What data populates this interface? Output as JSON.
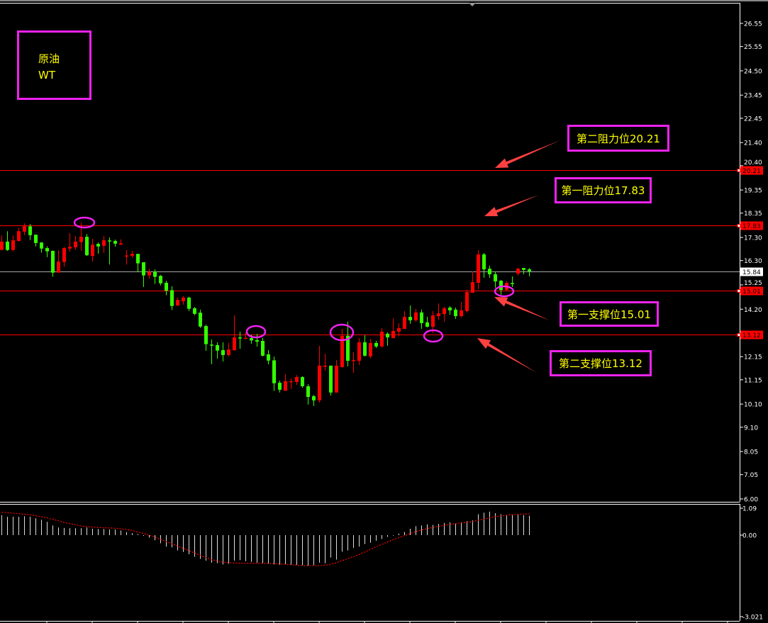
{
  "instrument_box": {
    "line1": "原油",
    "line2": "WT"
  },
  "colors": {
    "background": "#000000",
    "bull": "#ff0000",
    "bear": "#33ff00",
    "level_line": "#ff0000",
    "price_line": "#aaaaaa",
    "annotation_border": "#ee22ee",
    "annotation_text": "#ffff00",
    "arrow": "#ff4040",
    "histogram": "#dddddd",
    "signal": "#ff0000"
  },
  "annotations": [
    {
      "label": "第二阻力位20.21",
      "level": 20.21,
      "type": "resistance"
    },
    {
      "label": "第一阻力位17.83",
      "level": 17.83,
      "type": "resistance"
    },
    {
      "label": "第一支撑位15.01",
      "level": 15.01,
      "type": "support"
    },
    {
      "label": "第二支撑位13.12",
      "level": 13.12,
      "type": "support"
    }
  ],
  "chart_data": [
    {
      "type": "candlestick",
      "ylim": [
        6.0,
        26.55
      ],
      "y_ticks": [
        "26.55",
        "25.55",
        "24.50",
        "23.45",
        "22.45",
        "21.40",
        "20.40",
        "19.35",
        "18.35",
        "17.30",
        "16.30",
        "15.25",
        "14.20",
        "12.15",
        "11.15",
        "10.10",
        "9.10",
        "8.05",
        "7.05",
        "6.00"
      ],
      "level_lines": [
        20.21,
        17.83,
        15.01,
        13.12
      ],
      "level_labels": [
        "20.21",
        "17.83",
        "15.01",
        "13.12"
      ],
      "current_price": 15.84,
      "current_price_label": "15.84",
      "marked_candles": [
        14,
        44,
        59,
        75,
        89
      ],
      "ohlc": [
        [
          16.76,
          17.39,
          16.76,
          17.12
        ],
        [
          17.12,
          17.57,
          16.72,
          16.76
        ],
        [
          16.76,
          17.39,
          16.7,
          17.18
        ],
        [
          17.15,
          17.72,
          17.13,
          17.57
        ],
        [
          17.55,
          17.91,
          17.4,
          17.8
        ],
        [
          17.78,
          17.88,
          17.19,
          17.4
        ],
        [
          17.42,
          17.42,
          16.91,
          17.06
        ],
        [
          17.08,
          17.1,
          16.64,
          16.82
        ],
        [
          16.84,
          16.92,
          16.45,
          16.7
        ],
        [
          16.72,
          16.74,
          15.6,
          15.78
        ],
        [
          15.78,
          16.74,
          15.78,
          16.26
        ],
        [
          16.24,
          16.89,
          16.04,
          16.84
        ],
        [
          16.82,
          17.48,
          16.69,
          16.9
        ],
        [
          16.87,
          17.36,
          16.78,
          17.12
        ],
        [
          17.1,
          17.94,
          16.73,
          17.33
        ],
        [
          17.33,
          17.45,
          16.5,
          16.53
        ],
        [
          16.5,
          17.24,
          16.26,
          16.99
        ],
        [
          17.02,
          17.08,
          16.6,
          16.91
        ],
        [
          16.94,
          17.36,
          16.63,
          17.18
        ],
        [
          17.17,
          17.3,
          16.13,
          17.15
        ],
        [
          17.15,
          17.21,
          16.9,
          17.03
        ],
        [
          17.0,
          17.22,
          16.97,
          17.05
        ],
        [
          16.48,
          16.75,
          16.13,
          16.52
        ],
        [
          16.51,
          16.72,
          16.42,
          16.59
        ],
        [
          16.59,
          16.59,
          15.82,
          16.18
        ],
        [
          16.23,
          16.23,
          15.16,
          15.66
        ],
        [
          15.66,
          15.95,
          15.52,
          15.81
        ],
        [
          15.82,
          15.92,
          15.29,
          15.6
        ],
        [
          15.64,
          15.68,
          15.23,
          15.32
        ],
        [
          15.34,
          15.43,
          14.8,
          15.0
        ],
        [
          15.02,
          15.19,
          14.16,
          14.34
        ],
        [
          14.36,
          14.7,
          14.34,
          14.6
        ],
        [
          14.54,
          14.76,
          14.39,
          14.7
        ],
        [
          14.7,
          14.74,
          14.12,
          14.22
        ],
        [
          14.24,
          14.3,
          13.94,
          14.0
        ],
        [
          14.05,
          14.18,
          13.39,
          13.45
        ],
        [
          13.47,
          13.53,
          12.4,
          12.69
        ],
        [
          12.67,
          12.89,
          11.82,
          12.64
        ],
        [
          12.65,
          12.77,
          12.06,
          12.41
        ],
        [
          12.43,
          12.77,
          11.94,
          12.22
        ],
        [
          12.22,
          12.74,
          12.16,
          12.46
        ],
        [
          12.43,
          13.93,
          12.4,
          12.98
        ],
        [
          12.98,
          13.23,
          12.49,
          12.96
        ],
        [
          12.93,
          13.2,
          12.93,
          12.96
        ],
        [
          12.95,
          13.1,
          12.71,
          12.85
        ],
        [
          12.86,
          13.13,
          12.58,
          12.8
        ],
        [
          12.83,
          12.96,
          12.16,
          12.19
        ],
        [
          12.25,
          12.43,
          11.82,
          11.98
        ],
        [
          11.99,
          12.15,
          10.67,
          11.0
        ],
        [
          11.02,
          11.11,
          10.6,
          10.72
        ],
        [
          10.68,
          11.39,
          10.66,
          11.09
        ],
        [
          11.05,
          11.21,
          10.75,
          11.09
        ],
        [
          11.06,
          11.35,
          10.93,
          11.27
        ],
        [
          11.27,
          11.3,
          10.81,
          10.87
        ],
        [
          10.87,
          10.96,
          10.08,
          10.41
        ],
        [
          10.44,
          10.5,
          10.02,
          10.26
        ],
        [
          10.26,
          12.62,
          10.17,
          11.76
        ],
        [
          11.71,
          12.28,
          11.55,
          11.76
        ],
        [
          11.76,
          11.76,
          10.47,
          10.6
        ],
        [
          10.6,
          12.0,
          10.6,
          11.76
        ],
        [
          11.7,
          13.35,
          11.67,
          13.05
        ],
        [
          13.05,
          13.66,
          11.73,
          11.97
        ],
        [
          11.97,
          12.34,
          11.45,
          12.0
        ],
        [
          11.97,
          12.95,
          11.79,
          12.77
        ],
        [
          12.77,
          13.07,
          12.16,
          12.19
        ],
        [
          12.16,
          12.92,
          12.07,
          12.74
        ],
        [
          12.74,
          12.83,
          12.52,
          12.59
        ],
        [
          12.59,
          13.38,
          12.55,
          13.23
        ],
        [
          13.14,
          13.2,
          12.62,
          12.98
        ],
        [
          12.95,
          13.81,
          12.95,
          13.26
        ],
        [
          13.23,
          13.6,
          13.04,
          13.38
        ],
        [
          13.35,
          14.12,
          13.35,
          13.87
        ],
        [
          13.87,
          14.36,
          13.57,
          13.72
        ],
        [
          13.72,
          14.21,
          13.66,
          14.06
        ],
        [
          14.06,
          14.18,
          13.35,
          13.6
        ],
        [
          13.63,
          13.87,
          13.41,
          13.44
        ],
        [
          13.44,
          14.12,
          13.17,
          13.93
        ],
        [
          13.9,
          14.45,
          13.75,
          14.02
        ],
        [
          13.99,
          14.3,
          13.66,
          14.24
        ],
        [
          14.27,
          14.33,
          13.96,
          14.15
        ],
        [
          14.18,
          14.27,
          13.78,
          13.9
        ],
        [
          13.9,
          14.51,
          13.84,
          14.15
        ],
        [
          14.12,
          15.04,
          14.06,
          14.94
        ],
        [
          14.91,
          15.83,
          14.91,
          15.37
        ],
        [
          15.34,
          16.75,
          15.07,
          16.57
        ],
        [
          16.57,
          16.63,
          15.56,
          15.92
        ],
        [
          15.95,
          16.08,
          15.56,
          15.71
        ],
        [
          15.71,
          15.83,
          15.13,
          15.4
        ],
        [
          15.43,
          15.46,
          14.82,
          15.03
        ],
        [
          15.03,
          15.4,
          15.0,
          15.34
        ],
        [
          15.33,
          15.62,
          15.16,
          15.29
        ],
        [
          15.74,
          15.98,
          15.65,
          15.95
        ],
        [
          15.98,
          15.98,
          15.71,
          15.9
        ],
        [
          15.92,
          15.98,
          15.62,
          15.84
        ]
      ]
    },
    {
      "type": "histogram+line",
      "ylim": [
        -3.021,
        1.09
      ],
      "y_ticks": [
        "1.09",
        "0.00",
        "-3.021"
      ],
      "histogram": [
        0.78,
        0.72,
        0.72,
        0.72,
        0.74,
        0.72,
        0.66,
        0.6,
        0.52,
        0.38,
        0.3,
        0.28,
        0.27,
        0.27,
        0.27,
        0.3,
        0.25,
        0.24,
        0.24,
        0.22,
        0.22,
        0.18,
        0.12,
        0.08,
        0.04,
        -0.03,
        -0.1,
        -0.2,
        -0.32,
        -0.45,
        -0.48,
        -0.6,
        -0.66,
        -0.75,
        -0.85,
        -0.93,
        -1.0,
        -1.08,
        -1.1,
        -1.15,
        -1.12,
        -1.0,
        -0.98,
        -1.02,
        -1.05,
        -1.08,
        -1.1,
        -1.12,
        -1.15,
        -1.16,
        -1.14,
        -1.16,
        -1.17,
        -1.18,
        -1.2,
        -1.18,
        -1.08,
        -1.1,
        -0.88,
        -0.96,
        -0.65,
        -0.6,
        -0.5,
        -0.45,
        -0.35,
        -0.3,
        -0.22,
        -0.15,
        -0.07,
        -0.02,
        0.06,
        0.12,
        0.25,
        0.35,
        0.38,
        0.42,
        0.4,
        0.44,
        0.48,
        0.5,
        0.46,
        0.5,
        0.55,
        0.58,
        0.82,
        0.88,
        0.92,
        0.86,
        0.82,
        0.78,
        0.8,
        0.8,
        0.78,
        0.76
      ],
      "signal": [
        0.9,
        0.88,
        0.86,
        0.84,
        0.82,
        0.8,
        0.76,
        0.72,
        0.68,
        0.62,
        0.56,
        0.5,
        0.45,
        0.4,
        0.36,
        0.33,
        0.31,
        0.3,
        0.29,
        0.28,
        0.27,
        0.25,
        0.22,
        0.18,
        0.12,
        0.06,
        0,
        -0.08,
        -0.16,
        -0.26,
        -0.34,
        -0.43,
        -0.52,
        -0.61,
        -0.7,
        -0.79,
        -0.88,
        -0.96,
        -1.02,
        -1.06,
        -1.08,
        -1.09,
        -1.1,
        -1.1,
        -1.1,
        -1.1,
        -1.1,
        -1.11,
        -1.12,
        -1.13,
        -1.14,
        -1.16,
        -1.18,
        -1.19,
        -1.2,
        -1.2,
        -1.2,
        -1.18,
        -1.14,
        -1.08,
        -1.0,
        -0.92,
        -0.84,
        -0.76,
        -0.66,
        -0.56,
        -0.46,
        -0.36,
        -0.27,
        -0.18,
        -0.1,
        -0.02,
        0.06,
        0.14,
        0.2,
        0.26,
        0.3,
        0.34,
        0.38,
        0.42,
        0.45,
        0.48,
        0.5,
        0.53,
        0.58,
        0.63,
        0.68,
        0.72,
        0.75,
        0.78,
        0.8,
        0.82,
        0.83,
        0.83
      ]
    }
  ]
}
